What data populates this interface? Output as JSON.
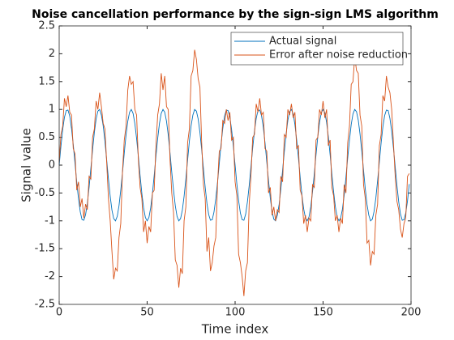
{
  "chart_data": {
    "type": "line",
    "title": "Noise cancellation performance by the sign-sign LMS algorithm",
    "xlabel": "Time index",
    "ylabel": "Signal value",
    "xlim": [
      0,
      200
    ],
    "xticks": [
      0,
      50,
      100,
      150,
      200
    ],
    "ylim": [
      -2.5,
      2.5
    ],
    "yticks": [
      -2.5,
      -2,
      -1.5,
      -1,
      -0.5,
      0,
      0.5,
      1,
      1.5,
      2,
      2.5
    ],
    "grid": false,
    "legend": "northeast",
    "x": [
      0,
      1,
      2,
      3,
      4,
      5,
      6,
      7,
      8,
      9,
      10,
      11,
      12,
      13,
      14,
      15,
      16,
      17,
      18,
      19,
      20,
      21,
      22,
      23,
      24,
      25,
      26,
      27,
      28,
      29,
      30,
      31,
      32,
      33,
      34,
      35,
      36,
      37,
      38,
      39,
      40,
      41,
      42,
      43,
      44,
      45,
      46,
      47,
      48,
      49,
      50,
      51,
      52,
      53,
      54,
      55,
      56,
      57,
      58,
      59,
      60,
      61,
      62,
      63,
      64,
      65,
      66,
      67,
      68,
      69,
      70,
      71,
      72,
      73,
      74,
      75,
      76,
      77,
      78,
      79,
      80,
      81,
      82,
      83,
      84,
      85,
      86,
      87,
      88,
      89,
      90,
      91,
      92,
      93,
      94,
      95,
      96,
      97,
      98,
      99,
      100,
      101,
      102,
      103,
      104,
      105,
      106,
      107,
      108,
      109,
      110,
      111,
      112,
      113,
      114,
      115,
      116,
      117,
      118,
      119,
      120,
      121,
      122,
      123,
      124,
      125,
      126,
      127,
      128,
      129,
      130,
      131,
      132,
      133,
      134,
      135,
      136,
      137,
      138,
      139,
      140,
      141,
      142,
      143,
      144,
      145,
      146,
      147,
      148,
      149,
      150,
      151,
      152,
      153,
      154,
      155,
      156,
      157,
      158,
      159,
      160,
      161,
      162,
      163,
      164,
      165,
      166,
      167,
      168,
      169,
      170,
      171,
      172,
      173,
      174,
      175,
      176,
      177,
      178,
      179,
      180,
      181,
      182,
      183,
      184,
      185,
      186,
      187,
      188,
      189,
      190,
      191,
      192,
      193,
      194,
      195,
      196,
      197,
      198,
      199
    ],
    "series": [
      {
        "name": "Actual signal",
        "color": "#0072BD",
        "values": [
          0,
          0.34,
          0.64,
          0.86,
          0.98,
          0.99,
          0.88,
          0.66,
          0.37,
          0.03,
          -0.31,
          -0.61,
          -0.84,
          -0.98,
          -0.99,
          -0.89,
          -0.69,
          -0.4,
          -0.06,
          0.28,
          0.59,
          0.83,
          0.97,
          1,
          0.9,
          0.71,
          0.43,
          0.09,
          -0.25,
          -0.56,
          -0.81,
          -0.96,
          -1,
          -0.92,
          -0.73,
          -0.45,
          -0.13,
          0.22,
          0.54,
          0.79,
          0.95,
          1,
          0.93,
          0.75,
          0.48,
          0.16,
          -0.19,
          -0.51,
          -0.77,
          -0.94,
          -1,
          -0.94,
          -0.77,
          -0.51,
          -0.19,
          0.16,
          0.48,
          0.75,
          0.93,
          1,
          0.95,
          0.79,
          0.54,
          0.22,
          -0.13,
          -0.45,
          -0.73,
          -0.92,
          -1,
          -0.96,
          -0.81,
          -0.56,
          -0.25,
          0.09,
          0.43,
          0.71,
          0.9,
          1,
          0.97,
          0.83,
          0.59,
          0.28,
          -0.06,
          -0.4,
          -0.69,
          -0.89,
          -0.99,
          -0.98,
          -0.84,
          -0.61,
          -0.31,
          0.03,
          0.37,
          0.66,
          0.88,
          0.99,
          0.98,
          0.86,
          0.64,
          0.34,
          0,
          -0.34,
          -0.64,
          -0.86,
          -0.98,
          -0.99,
          -0.88,
          -0.66,
          -0.37,
          -0.03,
          0.31,
          0.61,
          0.84,
          0.98,
          0.99,
          0.89,
          0.69,
          0.4,
          0.06,
          -0.28,
          -0.59,
          -0.83,
          -0.97,
          -1,
          -0.9,
          -0.71,
          -0.43,
          -0.09,
          0.25,
          0.56,
          0.81,
          0.96,
          1,
          0.92,
          0.73,
          0.45,
          0.13,
          -0.22,
          -0.54,
          -0.79,
          -0.95,
          -1,
          -0.93,
          -0.75,
          -0.48,
          -0.16,
          0.19,
          0.51,
          0.77,
          0.94,
          1,
          0.94,
          0.77,
          0.51,
          0.19,
          -0.16,
          -0.48,
          -0.75,
          -0.93,
          -1,
          -0.95,
          -0.79,
          -0.54,
          -0.22,
          0.13,
          0.45,
          0.73,
          0.92,
          1,
          0.96,
          0.81,
          0.56,
          0.25,
          -0.09,
          -0.43,
          -0.71,
          -0.9,
          -1,
          -0.97,
          -0.83,
          -0.59,
          -0.28,
          0.06,
          0.4,
          0.69,
          0.89,
          0.99,
          0.98,
          0.84,
          0.61,
          0.31,
          -0.03,
          -0.37,
          -0.66,
          -0.88,
          -0.99,
          -0.98,
          -0.86,
          -0.64,
          -0.34
        ]
      },
      {
        "name": "Error after noise reduction",
        "color": "#D95319",
        "values": [
          0.05,
          0.55,
          0.7,
          1.2,
          1.05,
          1.25,
          0.95,
          0.9,
          0.3,
          0.2,
          -0.45,
          -0.3,
          -0.75,
          -0.6,
          -0.95,
          -0.7,
          -0.8,
          -0.2,
          -0.25,
          0.5,
          0.65,
          1.15,
          1,
          1.3,
          1.05,
          0.75,
          0.65,
          0.05,
          -0.6,
          -1,
          -1.55,
          -2.05,
          -1.85,
          -1.9,
          -1.3,
          -1.05,
          -0.1,
          0.45,
          0.7,
          1.35,
          1.6,
          1.45,
          1.5,
          1,
          0.9,
          0.1,
          -0.4,
          -0.6,
          -1.2,
          -1,
          -1.4,
          -1.1,
          -1.2,
          -0.5,
          -0.45,
          0.35,
          0.9,
          1.1,
          1.65,
          1.35,
          1.6,
          1.05,
          1,
          0.1,
          -0.5,
          -0.85,
          -1.7,
          -1.8,
          -2.2,
          -1.85,
          -1.95,
          -1,
          -0.75,
          0.4,
          0.65,
          1.6,
          1.7,
          2.07,
          1.9,
          1.55,
          1.4,
          0.4,
          -0.35,
          -0.6,
          -1.55,
          -1.3,
          -1.9,
          -1.75,
          -1.45,
          -1.3,
          -0.35,
          0.25,
          0.3,
          0.8,
          0.75,
          1,
          0.8,
          0.95,
          0.45,
          0.5,
          -0.3,
          -0.55,
          -1.6,
          -1.75,
          -2,
          -2.35,
          -1.9,
          -1.75,
          -0.7,
          -0.2,
          0.5,
          0.55,
          1.1,
          0.95,
          1.2,
          0.9,
          0.95,
          0.3,
          0.25,
          -0.5,
          -0.4,
          -0.9,
          -0.75,
          -1,
          -0.8,
          -0.85,
          -0.2,
          -0.3,
          0.55,
          0.5,
          1,
          0.9,
          1.1,
          0.85,
          0.95,
          0.3,
          0.35,
          -0.45,
          -0.55,
          -1.05,
          -0.9,
          -1.2,
          -0.95,
          -1,
          -0.35,
          -0.4,
          0.45,
          0.5,
          1,
          0.9,
          1.15,
          0.85,
          1,
          0.35,
          0.45,
          -0.4,
          -0.55,
          -1,
          -0.9,
          -1.2,
          -0.95,
          -1.05,
          -0.35,
          -0.5,
          0.4,
          0.7,
          1.45,
          1.5,
          1.95,
          1.7,
          1.65,
          0.9,
          0.7,
          -0.35,
          -0.6,
          -1.4,
          -1.35,
          -1.8,
          -1.55,
          -1.6,
          -0.9,
          -0.7,
          0.35,
          0.55,
          1.25,
          1.15,
          1.6,
          1.4,
          1.3,
          1,
          0.4,
          -0.2,
          -0.65,
          -0.8,
          -1.15,
          -1.3,
          -1.05,
          -0.95,
          -0.2,
          -0.15
        ]
      }
    ]
  }
}
